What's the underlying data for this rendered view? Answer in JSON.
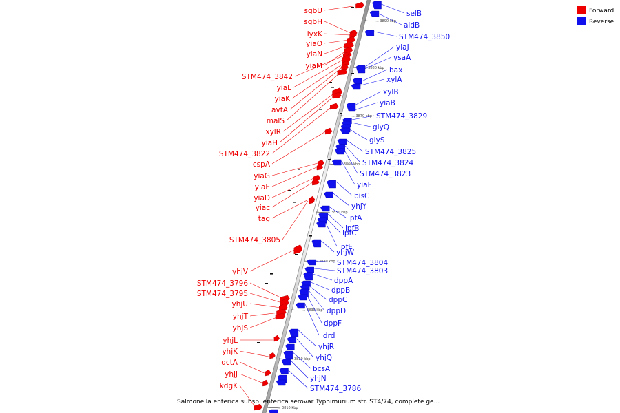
{
  "caption": "Salmonella enterica subsp. enterica serovar Typhimurium str. ST4/74, complete ge...",
  "legend": [
    {
      "label": "Forward",
      "color": "#ee0000"
    },
    {
      "label": "Reverse",
      "color": "#1111ee"
    }
  ],
  "ticks": [
    "3890 kbp",
    "3880 kbp",
    "3870 kbp",
    "3860 kbp",
    "3850 kbp",
    "3840 kbp",
    "3830 kbp",
    "3820 kbp",
    "3810 kbp"
  ],
  "forward_genes": [
    "sgbU",
    "sgbH",
    "lyxK",
    "yiaO",
    "yiaN",
    "yiaM",
    "STM474_3842",
    "yiaL",
    "yiaK",
    "avtA",
    "malS",
    "xylR",
    "yiaH",
    "STM474_3822",
    "cspA",
    "yiaG",
    "yiaE",
    "yiaD",
    "yiac",
    "tag",
    "STM474_3805",
    "yhjV",
    "STM474_3796",
    "STM474_3795",
    "yhjU",
    "yhjT",
    "yhjS",
    "yhjL",
    "yhjK",
    "dctA",
    "yhjJ",
    "kdgK"
  ],
  "reverse_genes": [
    "selB",
    "aldB",
    "STM474_3850",
    "yiaJ",
    "ysaA",
    "bax",
    "xylA",
    "xylB",
    "yiaB",
    "STM474_3829",
    "glyQ",
    "glyS",
    "STM474_3825",
    "STM474_3824",
    "STM474_3823",
    "yiaF",
    "bisC",
    "yhjY",
    "lpfA",
    "lpfB",
    "lpfC",
    "lpfE",
    "yhjW",
    "STM474_3804",
    "STM474_3803",
    "dppA",
    "dppB",
    "dppC",
    "dppD",
    "dppF",
    "ldrd",
    "yhjR",
    "yhjQ",
    "bcsA",
    "yhjN",
    "STM474_3786"
  ]
}
